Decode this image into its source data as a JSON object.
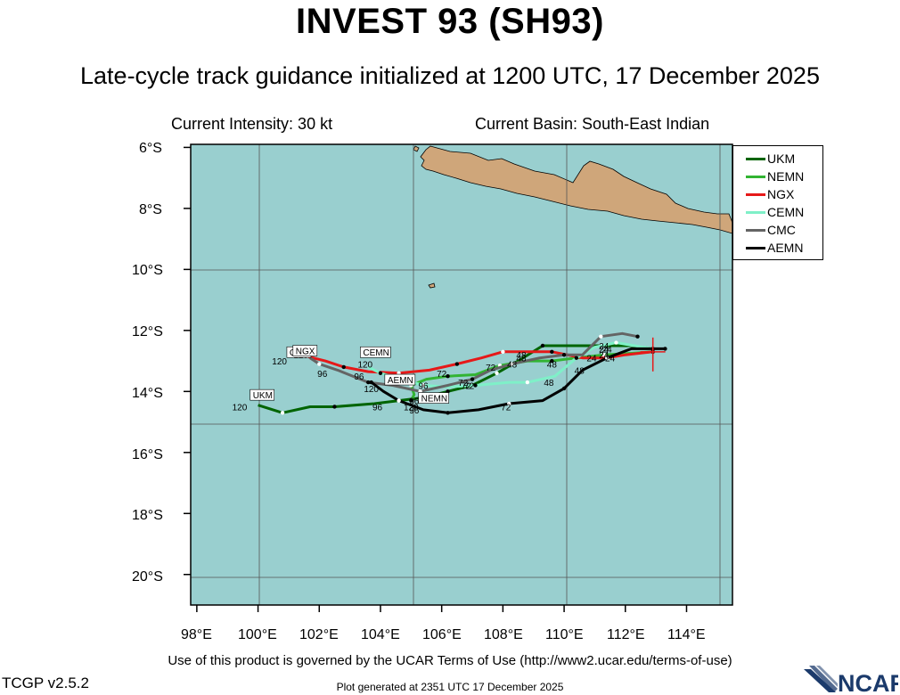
{
  "header": {
    "title": "INVEST 93 (SH93)",
    "subtitle": "Late-cycle track guidance initialized at 1200 UTC, 17 December 2025",
    "intensity": "Current Intensity: 30 kt",
    "basin": "Current Basin: South-East Indian"
  },
  "axes": {
    "lat_labels": [
      "6°S",
      "8°S",
      "10°S",
      "12°S",
      "14°S",
      "16°S",
      "18°S",
      "20°S"
    ],
    "lon_labels": [
      "98°E",
      "100°E",
      "102°E",
      "104°E",
      "106°E",
      "108°E",
      "110°E",
      "112°E",
      "114°E"
    ]
  },
  "colors": {
    "ocean": "#99cfcf",
    "land": "#cfa67a",
    "UKM": "#006400",
    "NEMN": "#32b432",
    "NGX": "#e61919",
    "CEMN": "#7ff0c8",
    "CMC": "#646464",
    "AEMN": "#000000",
    "current_position": "#e61919"
  },
  "footer": {
    "terms": "Use of this product is governed by the UCAR Terms of Use (http://www2.ucar.edu/terms-of-use)",
    "version": "TCGP v2.5.2",
    "generated": "Plot generated at 2351 UTC   17 December 2025",
    "logo_text": "NCAR"
  },
  "chart_data": {
    "type": "line",
    "title": "INVEST 93 (SH93)",
    "xlabel": "",
    "ylabel": "",
    "xlim": [
      97.8,
      115.5
    ],
    "ylim": [
      -21.0,
      -5.9
    ],
    "grid": true,
    "legend_position": "top-right",
    "current_position": [
      112.9,
      -12.7
    ],
    "series": [
      {
        "name": "UKM",
        "color": "#006400",
        "points": [
          [
            112.9,
            -12.6
          ],
          [
            112.2,
            -12.5
          ],
          [
            111.2,
            -12.5
          ],
          [
            110.2,
            -12.5
          ],
          [
            109.3,
            -12.5
          ],
          [
            108.5,
            -13.0
          ],
          [
            107.8,
            -13.4
          ],
          [
            107.0,
            -13.8
          ],
          [
            106.2,
            -14.0
          ],
          [
            105.4,
            -14.2
          ],
          [
            104.6,
            -14.3
          ],
          [
            103.8,
            -14.4
          ],
          [
            102.5,
            -14.5
          ],
          [
            101.7,
            -14.5
          ],
          [
            100.8,
            -14.7
          ],
          [
            100.0,
            -14.45
          ]
        ],
        "labels": [
          {
            "text": "24",
            "lon": 111.3,
            "lat": -12.6
          },
          {
            "text": "48",
            "lon": 108.6,
            "lat": -12.9
          },
          {
            "text": "72",
            "lon": 106.9,
            "lat": -13.8
          },
          {
            "text": "96",
            "lon": 103.9,
            "lat": -14.5
          },
          {
            "text": "120",
            "lon": 99.4,
            "lat": -14.5
          }
        ]
      },
      {
        "name": "NEMN",
        "color": "#32b432",
        "points": [
          [
            112.9,
            -12.7
          ],
          [
            112.2,
            -12.75
          ],
          [
            111.3,
            -12.8
          ],
          [
            110.4,
            -12.9
          ],
          [
            109.6,
            -13.0
          ],
          [
            108.8,
            -13.0
          ],
          [
            107.9,
            -13.15
          ],
          [
            107.1,
            -13.45
          ],
          [
            106.2,
            -13.5
          ],
          [
            105.5,
            -13.6
          ],
          [
            105.0,
            -13.8
          ],
          [
            105.1,
            -14.1
          ],
          [
            105.0,
            -14.3
          ]
        ],
        "labels": [
          {
            "text": "24",
            "lon": 111.5,
            "lat": -12.9
          },
          {
            "text": "48",
            "lon": 109.6,
            "lat": -13.1
          },
          {
            "text": "72",
            "lon": 107.6,
            "lat": -13.2
          },
          {
            "text": "96",
            "lon": 105.1,
            "lat": -14.3
          },
          {
            "text": "120",
            "lon": 105.0,
            "lat": -14.5
          }
        ]
      },
      {
        "name": "NGX",
        "color": "#e61919",
        "points": [
          [
            112.9,
            -12.7
          ],
          [
            112.0,
            -12.8
          ],
          [
            111.4,
            -12.9
          ],
          [
            110.6,
            -12.9
          ],
          [
            109.6,
            -12.7
          ],
          [
            108.8,
            -12.7
          ],
          [
            108.0,
            -12.7
          ],
          [
            107.3,
            -12.9
          ],
          [
            106.5,
            -13.1
          ],
          [
            105.6,
            -13.3
          ],
          [
            104.6,
            -13.4
          ],
          [
            103.6,
            -13.35
          ],
          [
            102.8,
            -13.2
          ],
          [
            102.2,
            -13.0
          ],
          [
            101.6,
            -12.85
          ]
        ],
        "labels": [
          {
            "text": "24",
            "lon": 111.3,
            "lat": -12.8
          },
          {
            "text": "48",
            "lon": 108.6,
            "lat": -12.8
          },
          {
            "text": "72",
            "lon": 106.0,
            "lat": -13.4
          },
          {
            "text": "96",
            "lon": 103.3,
            "lat": -13.5
          },
          {
            "text": "120",
            "lon": 101.4,
            "lat": -12.8
          }
        ]
      },
      {
        "name": "CEMN",
        "color": "#7ff0c8",
        "points": [
          [
            112.9,
            -12.6
          ],
          [
            112.3,
            -12.5
          ],
          [
            111.7,
            -12.4
          ],
          [
            111.0,
            -12.55
          ],
          [
            110.4,
            -12.9
          ],
          [
            109.7,
            -13.5
          ],
          [
            108.8,
            -13.7
          ],
          [
            108.2,
            -13.7
          ],
          [
            107.1,
            -13.8
          ],
          [
            106.2,
            -13.85
          ],
          [
            105.4,
            -13.8
          ],
          [
            104.7,
            -13.6
          ],
          [
            104.0,
            -13.4
          ],
          [
            103.6,
            -13.2
          ]
        ],
        "labels": [
          {
            "text": "24",
            "lon": 111.4,
            "lat": -12.6
          },
          {
            "text": "48",
            "lon": 109.5,
            "lat": -13.7
          },
          {
            "text": "72",
            "lon": 106.8,
            "lat": -13.8
          },
          {
            "text": "96",
            "lon": 105.4,
            "lat": -13.8
          },
          {
            "text": "120",
            "lon": 103.5,
            "lat": -13.1
          }
        ]
      },
      {
        "name": "CMC",
        "color": "#646464",
        "points": [
          [
            112.4,
            -12.2
          ],
          [
            111.9,
            -12.1
          ],
          [
            111.2,
            -12.2
          ],
          [
            110.6,
            -12.8
          ],
          [
            110.0,
            -12.8
          ],
          [
            109.2,
            -12.9
          ],
          [
            108.3,
            -13.1
          ],
          [
            107.6,
            -13.3
          ],
          [
            107.0,
            -13.6
          ],
          [
            106.2,
            -13.8
          ],
          [
            105.3,
            -14.0
          ],
          [
            104.4,
            -13.8
          ],
          [
            103.6,
            -13.7
          ],
          [
            102.6,
            -13.3
          ],
          [
            102.0,
            -13.1
          ],
          [
            101.7,
            -12.9
          ]
        ],
        "labels": [
          {
            "text": "24",
            "lon": 111.3,
            "lat": -12.5
          },
          {
            "text": "48",
            "lon": 108.3,
            "lat": -13.1
          },
          {
            "text": "72",
            "lon": 106.7,
            "lat": -13.7
          },
          {
            "text": "96",
            "lon": 102.1,
            "lat": -13.4
          },
          {
            "text": "120",
            "lon": 100.7,
            "lat": -13.0
          }
        ]
      },
      {
        "name": "AEMN",
        "color": "#000000",
        "points": [
          [
            113.3,
            -12.6
          ],
          [
            112.2,
            -12.6
          ],
          [
            111.4,
            -12.9
          ],
          [
            110.6,
            -13.3
          ],
          [
            110.0,
            -13.9
          ],
          [
            109.3,
            -14.3
          ],
          [
            108.2,
            -14.4
          ],
          [
            107.2,
            -14.6
          ],
          [
            106.2,
            -14.7
          ],
          [
            105.4,
            -14.6
          ],
          [
            104.6,
            -14.3
          ],
          [
            104.1,
            -14.0
          ],
          [
            103.7,
            -13.7
          ]
        ],
        "labels": [
          {
            "text": "24",
            "lon": 110.9,
            "lat": -12.9
          },
          {
            "text": "48",
            "lon": 110.5,
            "lat": -13.3
          },
          {
            "text": "72",
            "lon": 108.1,
            "lat": -14.5
          },
          {
            "text": "96",
            "lon": 105.1,
            "lat": -14.6
          },
          {
            "text": "120",
            "lon": 103.7,
            "lat": -13.9
          }
        ]
      }
    ],
    "end_labels": [
      {
        "text": "UKM",
        "lon": 99.8,
        "lat": -14.2
      },
      {
        "text": "CMC",
        "lon": 101.0,
        "lat": -12.8
      },
      {
        "text": "NGX",
        "lon": 101.2,
        "lat": -12.75
      },
      {
        "text": "CEMN",
        "lon": 103.4,
        "lat": -12.8
      },
      {
        "text": "AEMN",
        "lon": 104.2,
        "lat": -13.7
      },
      {
        "text": "NEMN",
        "lon": 105.3,
        "lat": -14.3
      }
    ]
  }
}
